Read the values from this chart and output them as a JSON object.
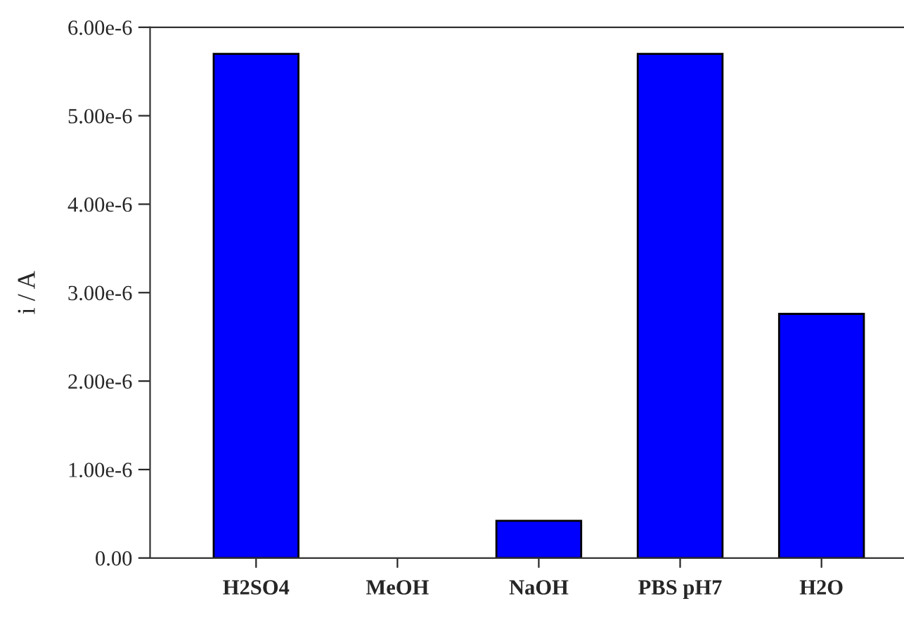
{
  "chart_data": {
    "type": "bar",
    "ylabel": "i / A",
    "categories": [
      "H2SO4",
      "MeOH",
      "NaOH",
      "PBS pH7",
      "H2O"
    ],
    "values": [
      5.7e-06,
      0,
      4.2e-07,
      5.7e-06,
      2.76e-06
    ],
    "color": "#0000ff",
    "ylim": [
      0,
      6e-06
    ],
    "yticks": [
      {
        "value": 0,
        "label": "0.00"
      },
      {
        "value": 1e-06,
        "label": "1.00e-6"
      },
      {
        "value": 2e-06,
        "label": "2.00e-6"
      },
      {
        "value": 3e-06,
        "label": "3.00e-6"
      },
      {
        "value": 4e-06,
        "label": "4.00e-6"
      },
      {
        "value": 5e-06,
        "label": "5.00e-6"
      },
      {
        "value": 6e-06,
        "label": "6.00e-6"
      }
    ],
    "grid": false
  }
}
